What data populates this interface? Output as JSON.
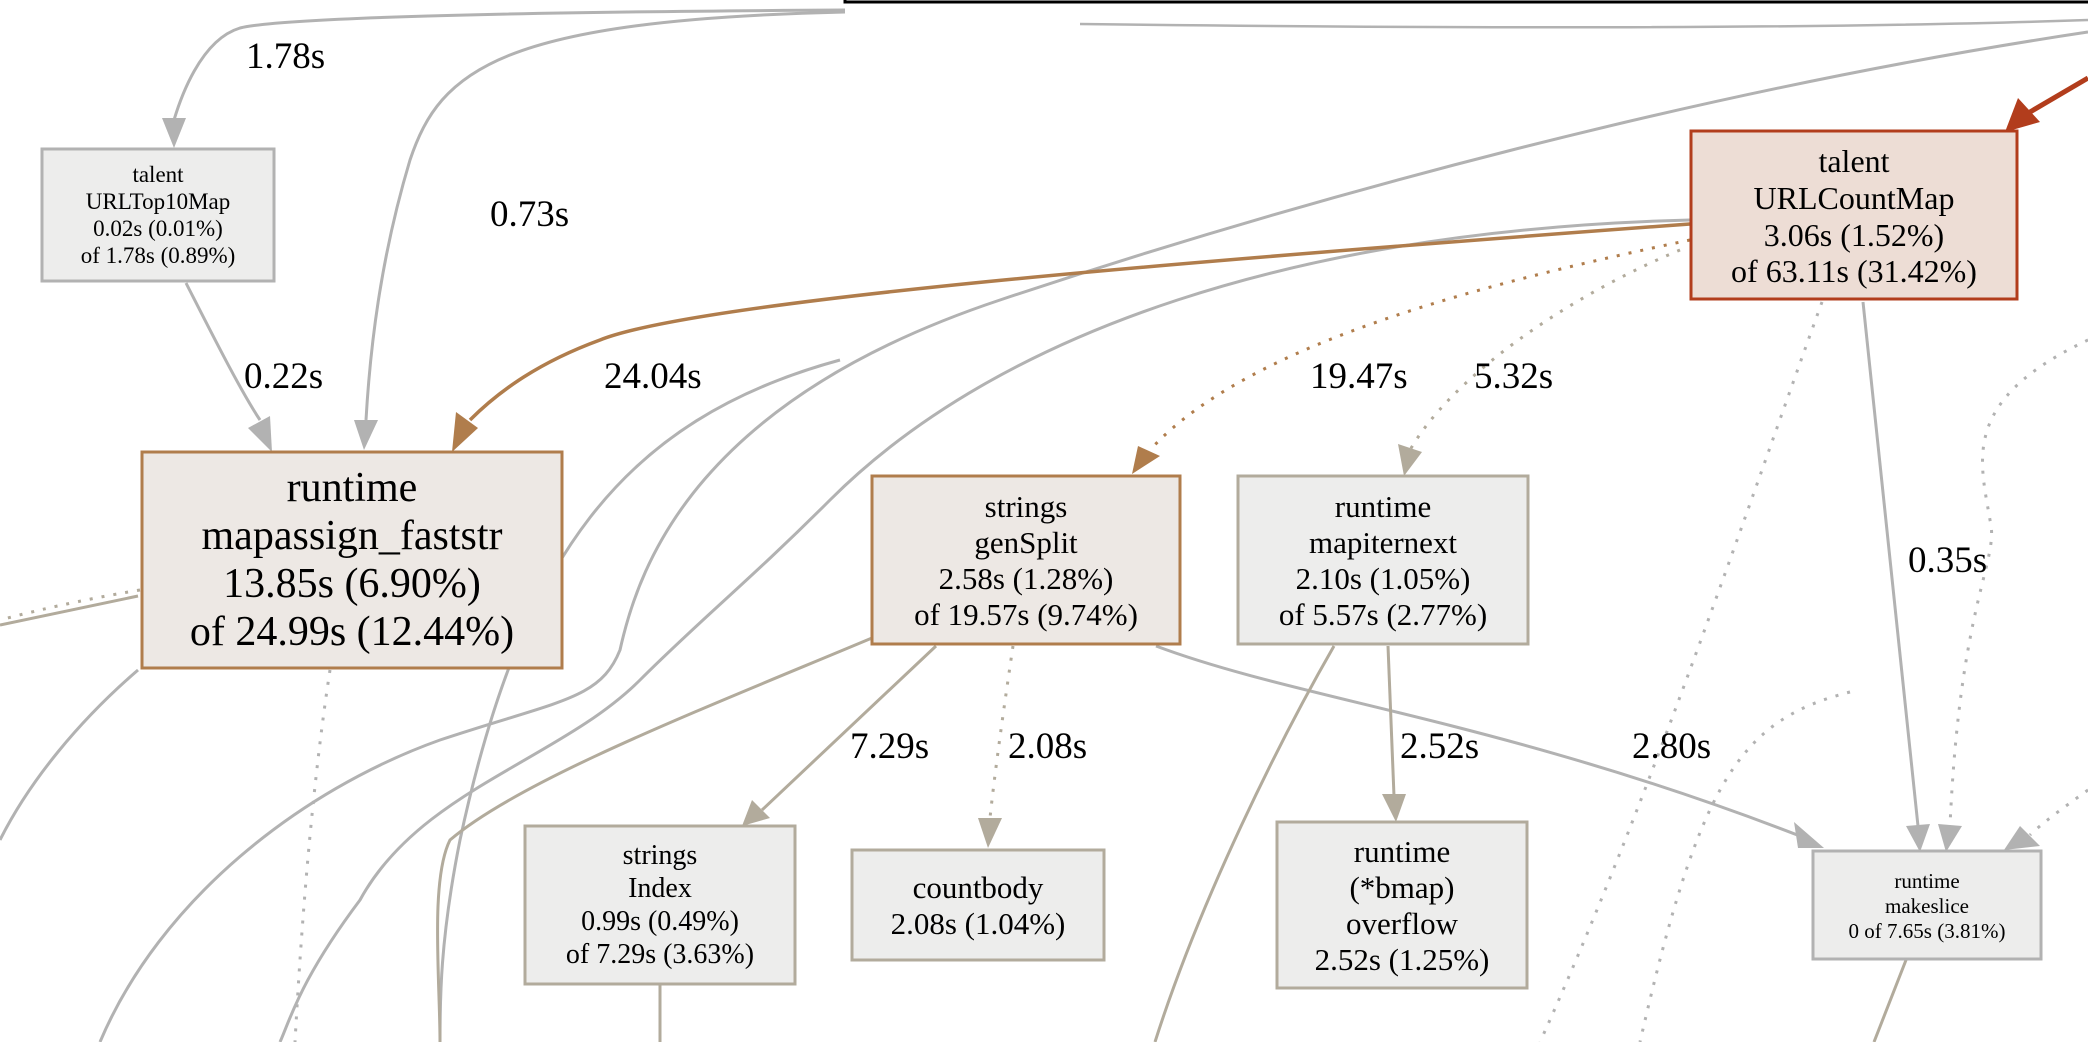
{
  "colors": {
    "grey_edge": "#b2b2b2",
    "tan_edge": "#b2ab9c",
    "brown_edge": "#b07d4c",
    "red_edge": "#b23d1c",
    "grey_fill": "#ededec",
    "tan_fill": "#ede8e4",
    "red_fill": "#edddd5",
    "grey_stroke": "#b2b2b2",
    "tan_stroke": "#b2ab9c",
    "brown_stroke": "#b07d4c",
    "red_stroke": "#b23d1c"
  },
  "nodes": {
    "urltop10map": {
      "pkg": "talent",
      "name": "URLTop10Map",
      "flat": "0.02s (0.01%)",
      "cum": "of 1.78s (0.89%)"
    },
    "urlcountmap": {
      "pkg": "talent",
      "name": "URLCountMap",
      "flat": "3.06s (1.52%)",
      "cum": "of 63.11s (31.42%)"
    },
    "mapassign": {
      "pkg": "runtime",
      "name": "mapassign_faststr",
      "flat": "13.85s (6.90%)",
      "cum": "of 24.99s (12.44%)"
    },
    "gensplit": {
      "pkg": "strings",
      "name": "genSplit",
      "flat": "2.58s (1.28%)",
      "cum": "of 19.57s (9.74%)"
    },
    "mapiternext": {
      "pkg": "runtime",
      "name": "mapiternext",
      "flat": "2.10s (1.05%)",
      "cum": "of 5.57s (2.77%)"
    },
    "index": {
      "pkg": "strings",
      "name": "Index",
      "flat": "0.99s (0.49%)",
      "cum": "of 7.29s (3.63%)"
    },
    "countbody": {
      "name": "countbody",
      "flat": "2.08s (1.04%)"
    },
    "bmap": {
      "pkg": "runtime",
      "name": "(*bmap)",
      "name2": "overflow",
      "flat": "2.52s (1.25%)"
    },
    "makeslice": {
      "pkg": "runtime",
      "name": "makeslice",
      "cum": "0 of 7.65s (3.81%)"
    }
  },
  "edges": {
    "to_urltop10map": "1.78s",
    "to_mapassign_top": "0.73s",
    "urltop10map_to_mapassign": "0.22s",
    "urlcountmap_to_mapassign": "24.04s",
    "urlcountmap_to_gensplit": "19.47s",
    "urlcountmap_to_mapiternext": "5.32s",
    "urlcountmap_to_makeslice": "0.35s",
    "gensplit_to_index": "7.29s",
    "gensplit_to_countbody": "2.08s",
    "mapiternext_to_bmap": "2.52s",
    "gensplit_to_makeslice": "2.80s"
  }
}
